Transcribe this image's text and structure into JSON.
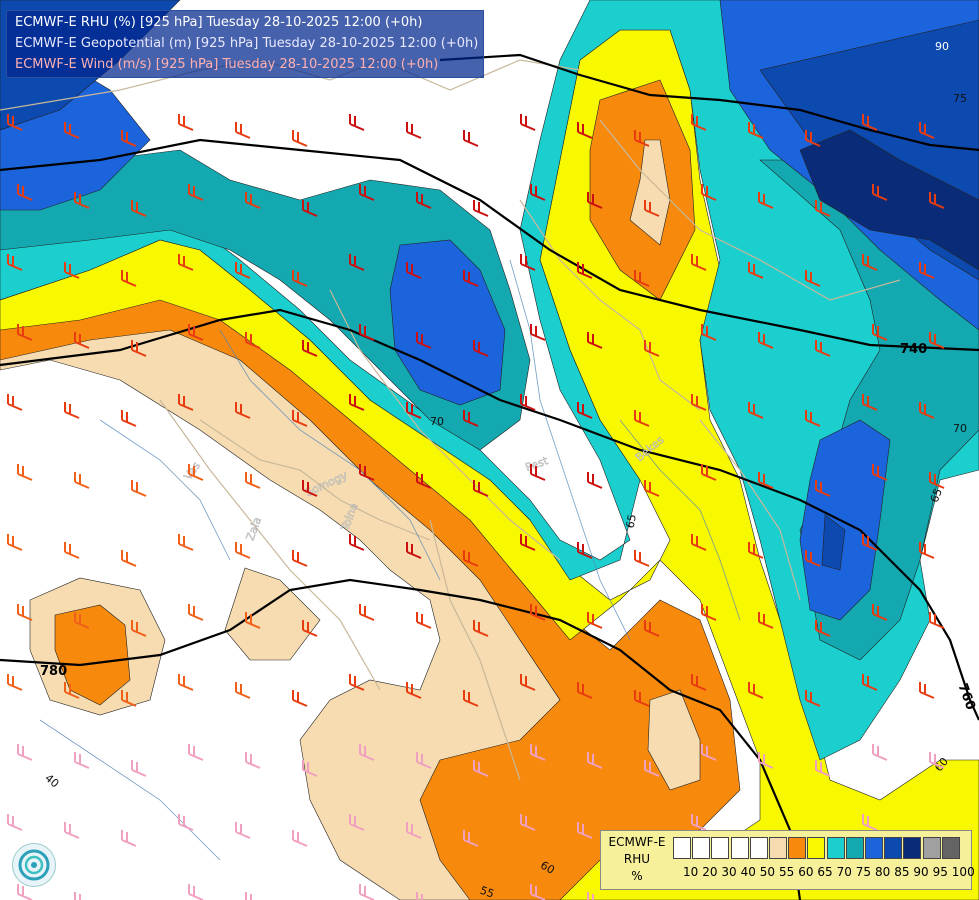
{
  "titles": {
    "line1": "ECMWF-E RHU (%) [925 hPa] Tuesday 28-10-2025 12:00 (+0h)",
    "line2": "ECMWF-E Geopotential (m) [925 hPa] Tuesday 28-10-2025 12:00 (+0h)",
    "line3": "ECMWF-E Wind (m/s) [925 hPa] Tuesday 28-10-2025 12:00 (+0h)",
    "line1_color": "#ffffff",
    "line2_color": "#e8e8ff",
    "line3_color": "#ffb0b0"
  },
  "legend": {
    "header_line1": "ECMWF-E",
    "header_line2": "RHU",
    "header_line3": "%",
    "ticks": [
      "10",
      "20",
      "30",
      "40",
      "50",
      "55",
      "60",
      "65",
      "70",
      "75",
      "80",
      "85",
      "90",
      "95",
      "100"
    ],
    "colors": [
      "#ffffff",
      "#ffffff",
      "#ffffff",
      "#ffffff",
      "#ffffff",
      "#f6dcb0",
      "#f7890d",
      "#f8f800",
      "#1ccfcf",
      "#14a8b0",
      "#1c64dc",
      "#0c4ab0",
      "#0a2c78",
      "#a0a0a0",
      "#646464"
    ]
  },
  "geopotential_labels": [
    "740",
    "780",
    "760"
  ],
  "rhu_contour_labels": [
    "90",
    "75",
    "70",
    "65",
    "70",
    "65",
    "60",
    "40",
    "55",
    "60"
  ],
  "place_labels": [
    "Vas",
    "Somogy",
    "Zala",
    "Tolna",
    "Pest",
    "Bekes"
  ]
}
